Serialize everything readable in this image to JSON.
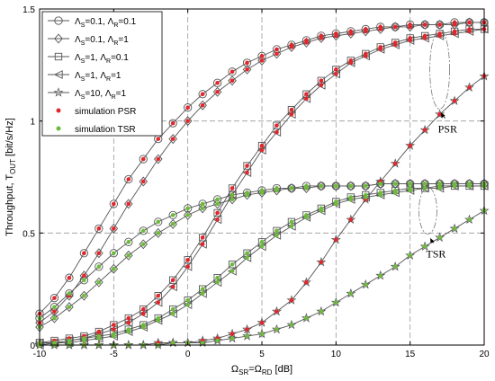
{
  "chart_data": {
    "type": "line",
    "title": "",
    "xlabel": {
      "base": "Ω",
      "sub1": "SR",
      "mid": "=Ω",
      "sub2": "RD",
      "tail": " [dB]"
    },
    "ylabel": {
      "base": "Throughput, T",
      "sub": "OUT",
      "tail": " [bit/s/Hz]"
    },
    "xlim": [
      -10,
      20
    ],
    "ylim": [
      0,
      1.5
    ],
    "xticks": [
      -10,
      -5,
      0,
      5,
      10,
      15,
      20
    ],
    "yticks": [
      0,
      0.5,
      1,
      1.5
    ],
    "xticklabels": [
      "-10",
      "-5",
      "0",
      "5",
      "10",
      "15",
      "20"
    ],
    "yticklabels": [
      "0",
      "0.5",
      "1",
      "1.5"
    ],
    "grid": true,
    "legend_position": "top-left",
    "x": [
      -10,
      -9,
      -8,
      -7,
      -6,
      -5,
      -4,
      -3,
      -2,
      -1,
      0,
      1,
      2,
      3,
      4,
      5,
      6,
      7,
      8,
      9,
      10,
      11,
      12,
      13,
      14,
      15,
      16,
      17,
      18,
      19,
      20
    ],
    "series": [
      {
        "group": "PSR",
        "marker": "circle",
        "name": [
          "Λ",
          "S",
          "=0.1, Λ",
          "R",
          "=0.1"
        ],
        "values": [
          0.14,
          0.21,
          0.3,
          0.41,
          0.52,
          0.63,
          0.74,
          0.83,
          0.92,
          0.99,
          1.06,
          1.12,
          1.17,
          1.22,
          1.26,
          1.29,
          1.32,
          1.34,
          1.36,
          1.38,
          1.39,
          1.4,
          1.41,
          1.42,
          1.42,
          1.43,
          1.43,
          1.43,
          1.44,
          1.44,
          1.44
        ]
      },
      {
        "group": "PSR",
        "marker": "diamond",
        "name": [
          "Λ",
          "S",
          "=0.1, Λ",
          "R",
          "=1"
        ],
        "values": [
          0.1,
          0.15,
          0.22,
          0.31,
          0.41,
          0.52,
          0.63,
          0.73,
          0.83,
          0.92,
          1.0,
          1.07,
          1.13,
          1.18,
          1.23,
          1.27,
          1.3,
          1.33,
          1.35,
          1.37,
          1.38,
          1.39,
          1.4,
          1.41,
          1.42,
          1.42,
          1.43,
          1.43,
          1.43,
          1.44,
          1.44
        ]
      },
      {
        "group": "PSR",
        "marker": "square",
        "name": [
          "Λ",
          "S",
          "=1, Λ",
          "R",
          "=0.1"
        ],
        "values": [
          0.01,
          0.02,
          0.03,
          0.04,
          0.06,
          0.09,
          0.12,
          0.16,
          0.22,
          0.29,
          0.38,
          0.48,
          0.59,
          0.7,
          0.8,
          0.89,
          0.98,
          1.05,
          1.12,
          1.18,
          1.23,
          1.27,
          1.3,
          1.33,
          1.35,
          1.37,
          1.38,
          1.39,
          1.4,
          1.41,
          1.41
        ]
      },
      {
        "group": "PSR",
        "marker": "triangle-left",
        "name": [
          "Λ",
          "S",
          "=1, Λ",
          "R",
          "=1"
        ],
        "values": [
          0.01,
          0.01,
          0.02,
          0.03,
          0.05,
          0.07,
          0.1,
          0.14,
          0.19,
          0.26,
          0.35,
          0.45,
          0.56,
          0.67,
          0.77,
          0.87,
          0.95,
          1.03,
          1.1,
          1.16,
          1.21,
          1.26,
          1.29,
          1.32,
          1.34,
          1.36,
          1.37,
          1.38,
          1.39,
          1.4,
          1.41
        ]
      },
      {
        "group": "PSR",
        "marker": "star",
        "name": [
          "Λ",
          "S",
          "=10, Λ",
          "R",
          "=1"
        ],
        "values": [
          0.0,
          0.0,
          0.0,
          0.0,
          0.0,
          0.0,
          0.0,
          0.0,
          0.01,
          0.01,
          0.01,
          0.02,
          0.03,
          0.05,
          0.07,
          0.1,
          0.15,
          0.2,
          0.28,
          0.37,
          0.47,
          0.56,
          0.65,
          0.73,
          0.81,
          0.89,
          0.96,
          1.03,
          1.09,
          1.15,
          1.2
        ]
      },
      {
        "group": "TSR",
        "marker": "circle",
        "name": [
          "Λ",
          "S",
          "=0.1, Λ",
          "R",
          "=0.1"
        ],
        "values": [
          0.12,
          0.17,
          0.23,
          0.29,
          0.35,
          0.41,
          0.46,
          0.51,
          0.55,
          0.58,
          0.61,
          0.63,
          0.65,
          0.67,
          0.68,
          0.69,
          0.7,
          0.7,
          0.71,
          0.71,
          0.71,
          0.71,
          0.71,
          0.72,
          0.72,
          0.72,
          0.72,
          0.72,
          0.72,
          0.72,
          0.72
        ]
      },
      {
        "group": "TSR",
        "marker": "diamond",
        "name": [
          "Λ",
          "S",
          "=0.1, Λ",
          "R",
          "=1"
        ],
        "values": [
          0.08,
          0.12,
          0.17,
          0.22,
          0.28,
          0.34,
          0.4,
          0.45,
          0.5,
          0.54,
          0.58,
          0.61,
          0.63,
          0.65,
          0.67,
          0.68,
          0.69,
          0.7,
          0.7,
          0.71,
          0.71,
          0.71,
          0.71,
          0.72,
          0.72,
          0.72,
          0.72,
          0.72,
          0.72,
          0.72,
          0.72
        ]
      },
      {
        "group": "TSR",
        "marker": "square",
        "name": [
          "Λ",
          "S",
          "=1, Λ",
          "R",
          "=0.1"
        ],
        "values": [
          0.01,
          0.01,
          0.02,
          0.03,
          0.04,
          0.05,
          0.07,
          0.09,
          0.12,
          0.16,
          0.2,
          0.25,
          0.3,
          0.36,
          0.41,
          0.46,
          0.51,
          0.55,
          0.58,
          0.61,
          0.64,
          0.66,
          0.67,
          0.68,
          0.69,
          0.7,
          0.7,
          0.71,
          0.71,
          0.71,
          0.71
        ]
      },
      {
        "group": "TSR",
        "marker": "triangle-left",
        "name": [
          "Λ",
          "S",
          "=1, Λ",
          "R",
          "=1"
        ],
        "values": [
          0.0,
          0.01,
          0.01,
          0.02,
          0.03,
          0.04,
          0.06,
          0.08,
          0.11,
          0.14,
          0.18,
          0.23,
          0.28,
          0.33,
          0.39,
          0.44,
          0.49,
          0.53,
          0.57,
          0.6,
          0.63,
          0.65,
          0.66,
          0.67,
          0.68,
          0.69,
          0.7,
          0.7,
          0.71,
          0.71,
          0.71
        ]
      },
      {
        "group": "TSR",
        "marker": "star",
        "name": [
          "Λ",
          "S",
          "=10, Λ",
          "R",
          "=1"
        ],
        "values": [
          0.0,
          0.0,
          0.0,
          0.0,
          0.0,
          0.0,
          0.0,
          0.0,
          0.0,
          0.01,
          0.01,
          0.01,
          0.02,
          0.03,
          0.04,
          0.05,
          0.07,
          0.09,
          0.12,
          0.15,
          0.19,
          0.23,
          0.27,
          0.31,
          0.35,
          0.4,
          0.44,
          0.48,
          0.52,
          0.56,
          0.6
        ]
      }
    ],
    "simulation_legend": [
      {
        "label": "simulation PSR",
        "color": "#e3262b"
      },
      {
        "label": "simulation TSR",
        "color": "#6dbb3a"
      }
    ],
    "annotations": [
      {
        "text": "PSR",
        "ellipse_x": 17,
        "ellipse_y": 1.23,
        "arrow_to_x": 17,
        "arrow_to_y": 1.05
      },
      {
        "text": "TSR",
        "ellipse_x": 16.2,
        "ellipse_y": 0.6,
        "arrow_to_x": 16.3,
        "arrow_to_y": 0.49
      }
    ],
    "colors": {
      "line": "#555555",
      "marker_edge": "#555555",
      "grid": "#999999"
    }
  }
}
